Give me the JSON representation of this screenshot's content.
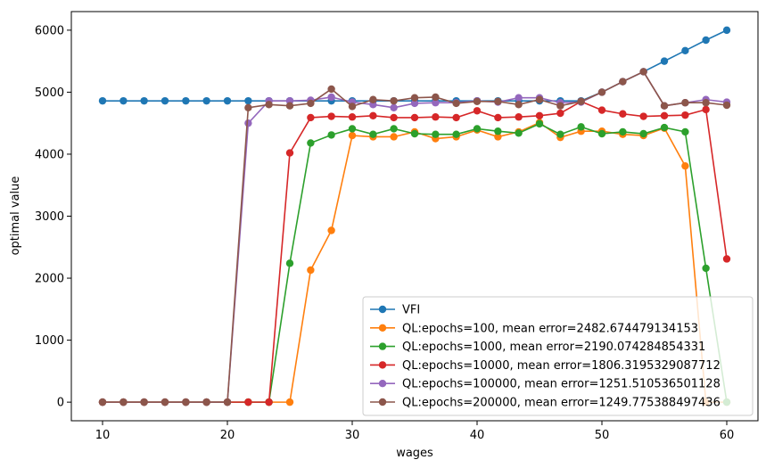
{
  "chart_data": {
    "type": "line",
    "title": "",
    "xlabel": "wages",
    "ylabel": "optimal value",
    "xlim": [
      7.5,
      62.5
    ],
    "ylim": [
      -300,
      6300
    ],
    "xticks": [
      10,
      20,
      30,
      40,
      50,
      60
    ],
    "yticks": [
      0,
      1000,
      2000,
      3000,
      4000,
      5000,
      6000
    ],
    "grid": false,
    "legend_position": "lower-right",
    "x": [
      10.0,
      11.67,
      13.33,
      15.0,
      16.67,
      18.33,
      20.0,
      21.67,
      23.33,
      25.0,
      26.67,
      28.33,
      30.0,
      31.67,
      33.33,
      35.0,
      36.67,
      38.33,
      40.0,
      41.67,
      43.33,
      45.0,
      46.67,
      48.33,
      50.0,
      51.67,
      53.33,
      55.0,
      56.67,
      58.33,
      60.0
    ],
    "series": [
      {
        "name": "VFI",
        "color": "#1f77b4",
        "values": [
          4860,
          4860,
          4860,
          4860,
          4860,
          4860,
          4860,
          4860,
          4860,
          4860,
          4860,
          4860,
          4860,
          4860,
          4860,
          4860,
          4860,
          4860,
          4860,
          4860,
          4860,
          4860,
          4860,
          4860,
          5000,
          5170,
          5330,
          5500,
          5670,
          5840,
          6000
        ]
      },
      {
        "name": "QL:epochs=100, mean error=2482.674479134153",
        "color": "#ff7f0e",
        "values": [
          0,
          0,
          0,
          0,
          0,
          0,
          0,
          0,
          0,
          0,
          2130,
          2770,
          4300,
          4280,
          4280,
          4360,
          4250,
          4280,
          4390,
          4280,
          4360,
          4510,
          4270,
          4370,
          4370,
          4320,
          4300,
          4420,
          3810,
          0,
          0
        ]
      },
      {
        "name": "QL:epochs=1000, mean error=2190.074284854331",
        "color": "#2ca02c",
        "values": [
          0,
          0,
          0,
          0,
          0,
          0,
          0,
          0,
          0,
          2240,
          4180,
          4310,
          4410,
          4320,
          4410,
          4330,
          4320,
          4320,
          4410,
          4370,
          4340,
          4490,
          4320,
          4440,
          4330,
          4360,
          4330,
          4430,
          4360,
          2160,
          0
        ]
      },
      {
        "name": "QL:epochs=10000, mean error=1806.3195329087712",
        "color": "#d62728",
        "values": [
          0,
          0,
          0,
          0,
          0,
          0,
          0,
          0,
          0,
          4020,
          4590,
          4610,
          4600,
          4620,
          4590,
          4590,
          4600,
          4590,
          4700,
          4590,
          4600,
          4620,
          4660,
          4850,
          4710,
          4650,
          4610,
          4620,
          4630,
          4720,
          2310
        ]
      },
      {
        "name": "QL:epochs=100000, mean error=1251.510536501128",
        "color": "#9467bd",
        "values": [
          0,
          0,
          0,
          0,
          0,
          0,
          0,
          4500,
          4860,
          4860,
          4870,
          4920,
          4840,
          4800,
          4750,
          4820,
          4830,
          4830,
          4860,
          4840,
          4910,
          4910,
          4830,
          4840,
          5000,
          5170,
          5330,
          4780,
          4830,
          4880,
          4840
        ]
      },
      {
        "name": "QL:epochs=200000, mean error=1249.775388497436",
        "color": "#8c564b",
        "values": [
          0,
          0,
          0,
          0,
          0,
          0,
          0,
          4750,
          4800,
          4780,
          4820,
          5050,
          4770,
          4880,
          4860,
          4910,
          4920,
          4820,
          4850,
          4850,
          4800,
          4880,
          4780,
          4850,
          5000,
          5170,
          5330,
          4780,
          4830,
          4830,
          4790
        ]
      }
    ]
  }
}
